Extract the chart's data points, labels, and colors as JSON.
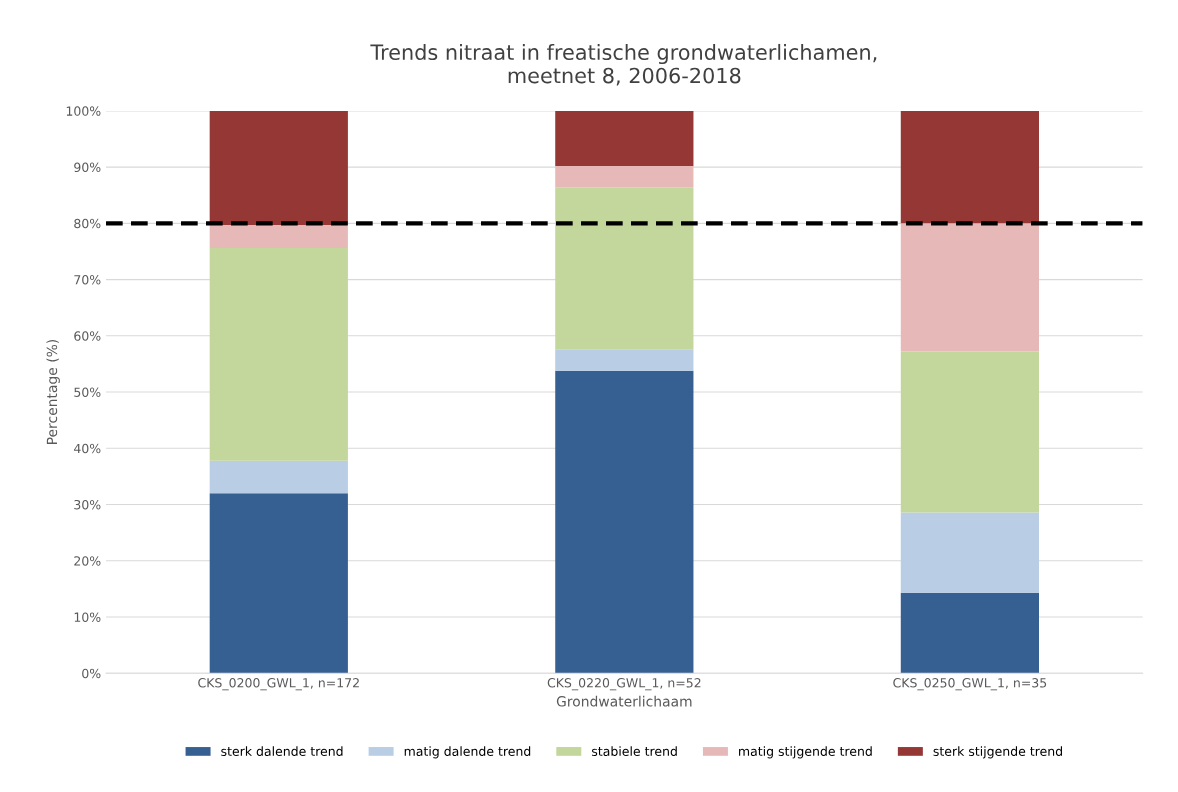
{
  "chart_data": {
    "type": "bar",
    "title": "Trends nitraat in freatische grondwaterlichamen,\nmeetnet 8, 2006-2018",
    "xlabel": "Grondwaterlichaam",
    "ylabel": "Percentage (%)",
    "categories": [
      "CKS_0200_GWL_1, n=172",
      "CKS_0220_GWL_1, n=52",
      "CKS_0250_GWL_1, n=35"
    ],
    "stacked": true,
    "series": [
      {
        "name": "sterk dalende trend",
        "color": "#376092",
        "values": [
          32.0,
          53.8,
          14.3
        ]
      },
      {
        "name": "matig dalende trend",
        "color": "#b9cde5",
        "values": [
          5.8,
          3.8,
          14.3
        ]
      },
      {
        "name": "stabiele trend",
        "color": "#c3d69b",
        "values": [
          37.8,
          28.8,
          28.6
        ]
      },
      {
        "name": "matig stijgende trend",
        "color": "#e6b9b8",
        "values": [
          4.1,
          3.8,
          22.8
        ]
      },
      {
        "name": "sterk stijgende trend",
        "color": "#953735",
        "values": [
          20.3,
          9.8,
          20.0
        ]
      }
    ],
    "ylim": [
      0,
      100
    ],
    "yticks": [
      {
        "value": 0,
        "label": "0%"
      },
      {
        "value": 10,
        "label": "10%"
      },
      {
        "value": 20,
        "label": "20%"
      },
      {
        "value": 30,
        "label": "30%"
      },
      {
        "value": 40,
        "label": "40%"
      },
      {
        "value": 50,
        "label": "50%"
      },
      {
        "value": 60,
        "label": "60%"
      },
      {
        "value": 70,
        "label": "70%"
      },
      {
        "value": 80,
        "label": "80%"
      },
      {
        "value": 90,
        "label": "90%"
      },
      {
        "value": 100,
        "label": "100%"
      }
    ],
    "ref_lines": [
      {
        "axis": "y",
        "value": 80,
        "color": "#000000",
        "line_style": "dashed"
      }
    ],
    "grid": "y",
    "legend": "bottom"
  }
}
